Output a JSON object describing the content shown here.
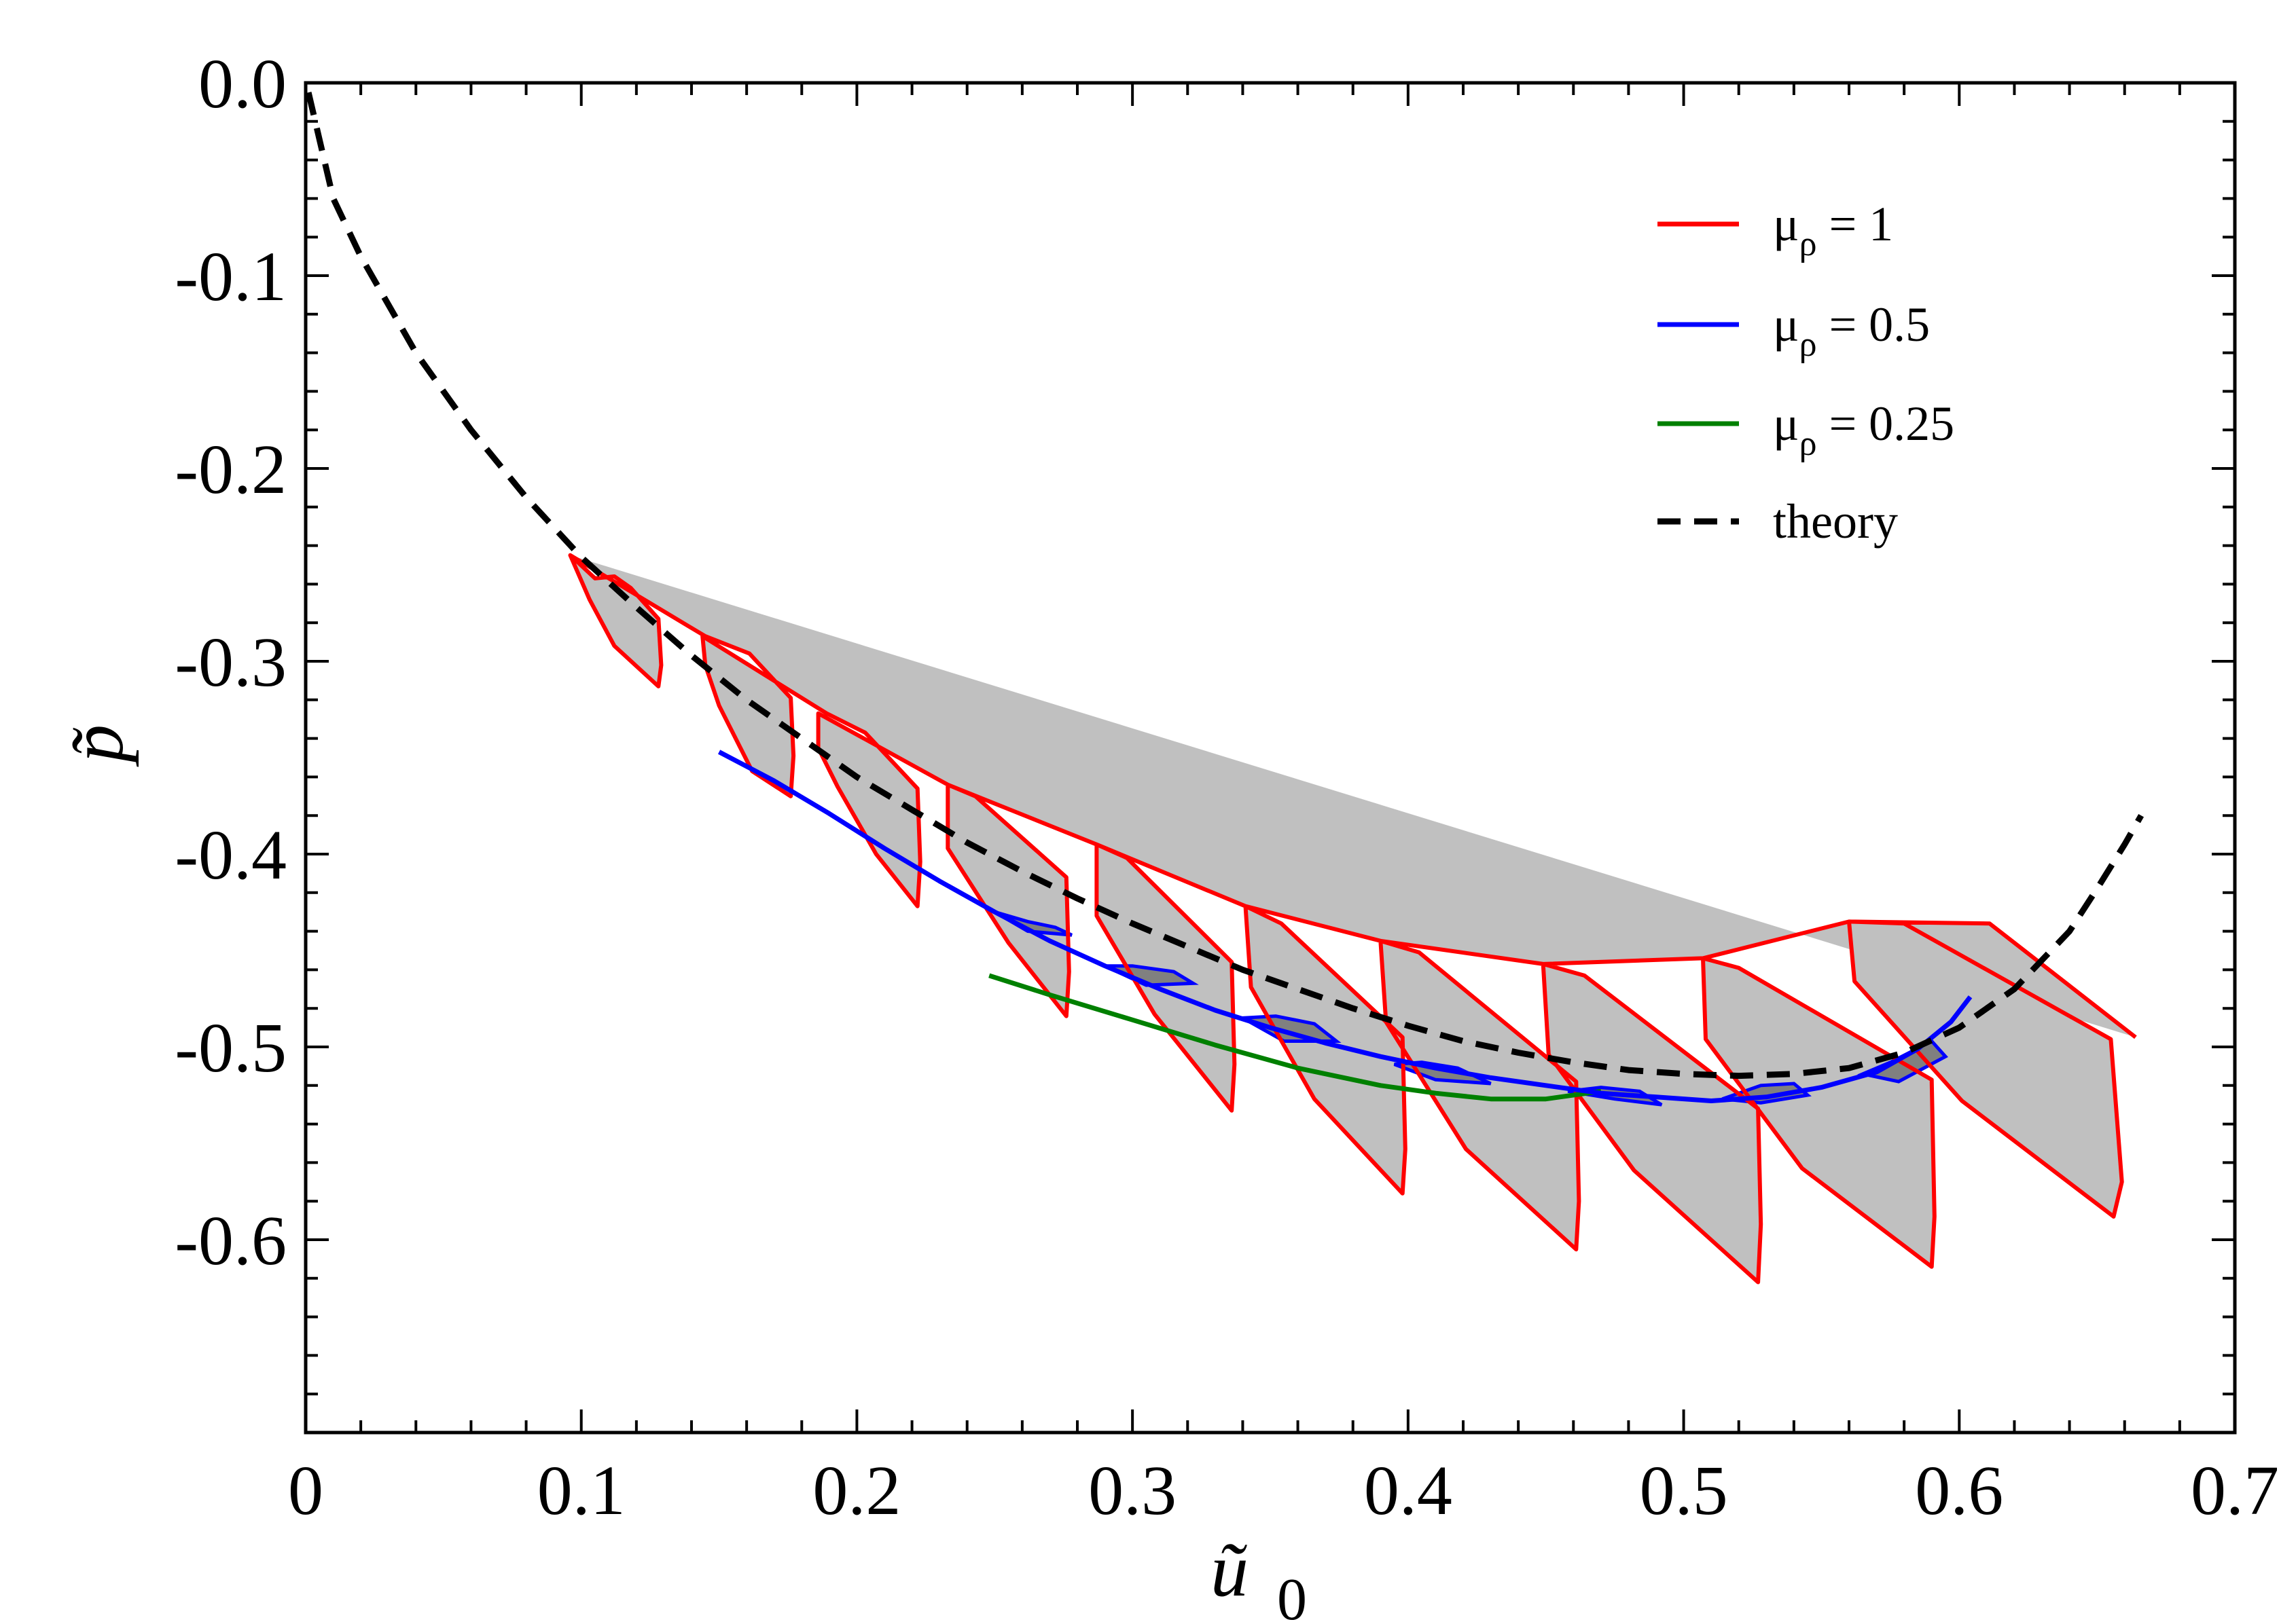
{
  "chart_data": {
    "type": "line",
    "title": "",
    "xlabel": "ũ",
    "xlabel_sub": "0",
    "ylabel": "p̃",
    "xlim": [
      0,
      0.7
    ],
    "ylim": [
      -0.7,
      0.0
    ],
    "xticks": [
      0,
      0.1,
      0.2,
      0.3,
      0.4,
      0.5,
      0.6,
      0.7
    ],
    "xtick_labels": [
      "0",
      "0.1",
      "0.2",
      "0.3",
      "0.4",
      "0.5",
      "0.6",
      "0.7"
    ],
    "yticks": [
      0.0,
      -0.1,
      -0.2,
      -0.3,
      -0.4,
      -0.5,
      -0.6
    ],
    "ytick_labels": [
      "0.0",
      "-0.1",
      "-0.2",
      "-0.3",
      "-0.4",
      "-0.5",
      "-0.6"
    ],
    "legend_position": "top-right",
    "colors": {
      "red": "#ff0000",
      "blue": "#0000ff",
      "green": "#008000",
      "black": "#000000",
      "fill": "#c0c0c0",
      "fill_dark": "#808080"
    },
    "series": [
      {
        "name": "μρ = 1",
        "legend_base": "μ",
        "legend_sub": "ρ",
        "legend_value": " = 1",
        "color": "#ff0000",
        "style": "solid",
        "x": [
          0.096,
          0.105,
          0.112,
          0.118,
          0.128,
          0.129,
          0.128,
          0.112,
          0.103,
          0.096,
          0.096,
          0.145,
          0.161,
          0.176,
          0.177,
          0.176,
          0.162,
          0.15,
          0.145,
          0.144,
          0.144,
          0.189,
          0.203,
          0.222,
          0.223,
          0.222,
          0.207,
          0.193,
          0.186,
          0.186,
          0.186,
          0.233,
          0.243,
          0.276,
          0.277,
          0.276,
          0.255,
          0.233,
          0.233,
          0.233,
          0.287,
          0.298,
          0.336,
          0.337,
          0.336,
          0.308,
          0.287,
          0.287,
          0.287,
          0.341,
          0.354,
          0.398,
          0.399,
          0.398,
          0.366,
          0.343,
          0.341,
          0.341,
          0.39,
          0.404,
          0.461,
          0.462,
          0.461,
          0.421,
          0.392,
          0.39,
          0.39,
          0.449,
          0.464,
          0.527,
          0.528,
          0.527,
          0.482,
          0.451,
          0.449,
          0.449,
          0.507,
          0.52,
          0.59,
          0.591,
          0.59,
          0.543,
          0.508,
          0.507,
          0.507,
          0.56,
          0.58,
          0.655,
          0.659,
          0.656,
          0.601,
          0.562,
          0.56,
          0.56,
          0.611,
          0.664
        ],
        "y": [
          -0.245,
          -0.257,
          -0.256,
          -0.262,
          -0.278,
          -0.302,
          -0.313,
          -0.292,
          -0.268,
          -0.245,
          -0.245,
          -0.287,
          -0.296,
          -0.319,
          -0.349,
          -0.37,
          -0.357,
          -0.323,
          -0.302,
          -0.287,
          -0.287,
          -0.327,
          -0.337,
          -0.366,
          -0.404,
          -0.427,
          -0.4,
          -0.365,
          -0.345,
          -0.327,
          -0.327,
          -0.364,
          -0.37,
          -0.412,
          -0.461,
          -0.484,
          -0.446,
          -0.397,
          -0.364,
          -0.364,
          -0.395,
          -0.402,
          -0.456,
          -0.509,
          -0.533,
          -0.483,
          -0.432,
          -0.395,
          -0.395,
          -0.427,
          -0.436,
          -0.495,
          -0.553,
          -0.576,
          -0.527,
          -0.469,
          -0.427,
          -0.427,
          -0.445,
          -0.451,
          -0.518,
          -0.58,
          -0.605,
          -0.553,
          -0.487,
          -0.445,
          -0.445,
          -0.457,
          -0.463,
          -0.532,
          -0.592,
          -0.622,
          -0.564,
          -0.504,
          -0.457,
          -0.457,
          -0.454,
          -0.459,
          -0.517,
          -0.588,
          -0.614,
          -0.563,
          -0.496,
          -0.454,
          -0.454,
          -0.435,
          -0.436,
          -0.496,
          -0.57,
          -0.588,
          -0.528,
          -0.466,
          -0.435,
          -0.435,
          -0.436,
          -0.495
        ]
      },
      {
        "name": "μρ = 0.5",
        "legend_base": "μ",
        "legend_sub": "ρ",
        "legend_value": " = 0.5",
        "color": "#0000ff",
        "style": "solid",
        "x": [
          0.15,
          0.17,
          0.19,
          0.21,
          0.23,
          0.25,
          0.27,
          0.29,
          0.31,
          0.33,
          0.35,
          0.37,
          0.39,
          0.41,
          0.43,
          0.45,
          0.47,
          0.49,
          0.51,
          0.53,
          0.55,
          0.57,
          0.585,
          0.597,
          0.604
        ],
        "y": [
          -0.347,
          -0.362,
          -0.379,
          -0.397,
          -0.414,
          -0.43,
          -0.445,
          -0.458,
          -0.47,
          -0.481,
          -0.49,
          -0.498,
          -0.505,
          -0.511,
          -0.516,
          -0.52,
          -0.524,
          -0.526,
          -0.528,
          -0.526,
          -0.521,
          -0.513,
          -0.501,
          -0.487,
          -0.474
        ]
      },
      {
        "name": "μρ = 0.25",
        "legend_base": "μ",
        "legend_sub": "ρ",
        "legend_value": " = 0.25",
        "color": "#008000",
        "style": "solid",
        "x": [
          0.248,
          0.27,
          0.3,
          0.33,
          0.36,
          0.39,
          0.41,
          0.43,
          0.45,
          0.47
        ],
        "y": [
          -0.463,
          -0.473,
          -0.486,
          -0.499,
          -0.511,
          -0.52,
          -0.524,
          -0.527,
          -0.527,
          -0.523
        ]
      },
      {
        "name": "theory",
        "legend_base": "theory",
        "legend_sub": "",
        "legend_value": "",
        "color": "#000000",
        "style": "dashed",
        "x": [
          0.001,
          0.01,
          0.02,
          0.04,
          0.06,
          0.08,
          0.1,
          0.12,
          0.14,
          0.16,
          0.18,
          0.2,
          0.22,
          0.24,
          0.26,
          0.28,
          0.3,
          0.32,
          0.34,
          0.36,
          0.38,
          0.4,
          0.42,
          0.44,
          0.46,
          0.48,
          0.5,
          0.52,
          0.54,
          0.56,
          0.58,
          0.6,
          0.62,
          0.64,
          0.65,
          0.66,
          0.666
        ],
        "y": [
          -0.005,
          -0.06,
          -0.09,
          -0.14,
          -0.18,
          -0.215,
          -0.246,
          -0.272,
          -0.297,
          -0.32,
          -0.34,
          -0.36,
          -0.377,
          -0.394,
          -0.409,
          -0.423,
          -0.436,
          -0.448,
          -0.46,
          -0.47,
          -0.48,
          -0.489,
          -0.497,
          -0.503,
          -0.508,
          -0.512,
          -0.514,
          -0.515,
          -0.514,
          -0.511,
          -0.503,
          -0.49,
          -0.47,
          -0.44,
          -0.418,
          -0.395,
          -0.38
        ]
      }
    ],
    "blue_shaded_lobes": [
      {
        "x": [
          0.25,
          0.262,
          0.272,
          0.278,
          0.262,
          0.25
        ],
        "y": [
          -0.43,
          -0.435,
          -0.438,
          -0.442,
          -0.44,
          -0.43
        ]
      },
      {
        "x": [
          0.29,
          0.3,
          0.315,
          0.322,
          0.305,
          0.29
        ],
        "y": [
          -0.458,
          -0.458,
          -0.461,
          -0.467,
          -0.468,
          -0.458
        ]
      },
      {
        "x": [
          0.34,
          0.352,
          0.366,
          0.374,
          0.355,
          0.34
        ],
        "y": [
          -0.485,
          -0.484,
          -0.488,
          -0.497,
          -0.497,
          -0.485
        ]
      },
      {
        "x": [
          0.395,
          0.405,
          0.418,
          0.43,
          0.41,
          0.395
        ],
        "y": [
          -0.509,
          -0.508,
          -0.511,
          -0.519,
          -0.517,
          -0.509
        ]
      },
      {
        "x": [
          0.458,
          0.47,
          0.484,
          0.492,
          0.475,
          0.458
        ],
        "y": [
          -0.523,
          -0.521,
          -0.523,
          -0.53,
          -0.527,
          -0.523
        ]
      },
      {
        "x": [
          0.514,
          0.528,
          0.54,
          0.545,
          0.528,
          0.514
        ],
        "y": [
          -0.527,
          -0.52,
          -0.519,
          -0.525,
          -0.529,
          -0.527
        ]
      },
      {
        "x": [
          0.565,
          0.575,
          0.59,
          0.595,
          0.578,
          0.565
        ],
        "y": [
          -0.514,
          -0.508,
          -0.497,
          -0.505,
          -0.518,
          -0.514
        ]
      }
    ]
  }
}
